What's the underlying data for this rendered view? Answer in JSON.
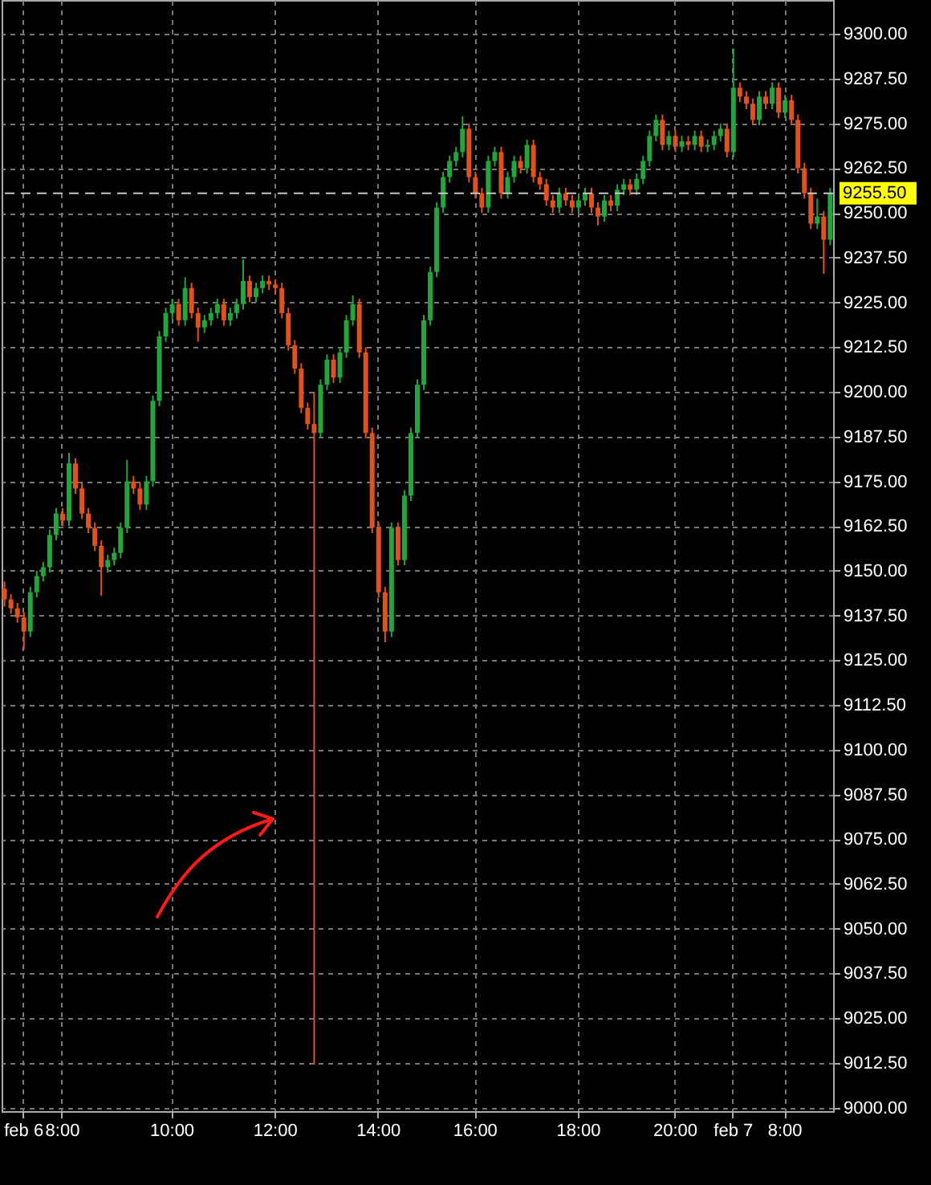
{
  "chart_data": {
    "type": "candlestick",
    "categories": [
      null,
      null,
      null,
      "feb 6",
      null,
      null,
      null,
      null,
      null,
      "8:00",
      null,
      null,
      null,
      null,
      null,
      null,
      null,
      null,
      null,
      null,
      null,
      null,
      null,
      null,
      null,
      null,
      "10:00",
      null,
      null,
      null,
      null,
      null,
      null,
      null,
      null,
      null,
      null,
      null,
      null,
      null,
      null,
      null,
      "12:00",
      null,
      null,
      null,
      null,
      null,
      null,
      null,
      null,
      null,
      null,
      null,
      null,
      null,
      null,
      null,
      "14:00",
      null,
      null,
      null,
      null,
      null,
      null,
      null,
      null,
      null,
      null,
      null,
      null,
      null,
      null,
      "16:00",
      null,
      null,
      null,
      null,
      null,
      null,
      null,
      null,
      null,
      null,
      null,
      null,
      null,
      null,
      null,
      "18:00",
      null,
      null,
      null,
      null,
      null,
      null,
      null,
      null,
      null,
      null,
      null,
      null,
      null,
      null,
      "20:00",
      null,
      null,
      null,
      null,
      null,
      null,
      null,
      null,
      "feb 7",
      null,
      null,
      null,
      null,
      null,
      null,
      null,
      "8:00",
      null,
      null,
      null,
      null,
      null,
      null,
      null
    ],
    "ohlc": [
      [
        9145,
        9147,
        9140,
        9142
      ],
      [
        9142,
        9143.5,
        9138,
        9139.5
      ],
      [
        9139.5,
        9141,
        9135.5,
        9137
      ],
      [
        9137,
        9138.5,
        9128,
        9133
      ],
      [
        9133,
        9145.5,
        9131.5,
        9144
      ],
      [
        9144,
        9150,
        9142.5,
        9148.5
      ],
      [
        9148.5,
        9152.5,
        9147,
        9151
      ],
      [
        9151,
        9161.5,
        9149.5,
        9160
      ],
      [
        9160,
        9167.5,
        9158.5,
        9166
      ],
      [
        9166,
        9167.5,
        9162.5,
        9164
      ],
      [
        9164,
        9183,
        9162.5,
        9180
      ],
      [
        9180,
        9181.5,
        9171.5,
        9173
      ],
      [
        9173,
        9174.5,
        9164.5,
        9166
      ],
      [
        9166,
        9167.5,
        9160.5,
        9162
      ],
      [
        9162,
        9163.5,
        9155.5,
        9157
      ],
      [
        9157,
        9158.5,
        9143,
        9151
      ],
      [
        9151,
        9154.5,
        9149.5,
        9153
      ],
      [
        9153,
        9156.5,
        9151.5,
        9155
      ],
      [
        9155,
        9163.5,
        9153.5,
        9162
      ],
      [
        9162,
        9181,
        9160.5,
        9175
      ],
      [
        9175,
        9176.5,
        9171.5,
        9173
      ],
      [
        9173,
        9174.5,
        9167,
        9168.5
      ],
      [
        9168.5,
        9176.5,
        9167,
        9175
      ],
      [
        9175,
        9199,
        9173.5,
        9197.5
      ],
      [
        9197.5,
        9217,
        9196,
        9215.5
      ],
      [
        9215.5,
        9223.5,
        9214,
        9222
      ],
      [
        9222,
        9226,
        9220.5,
        9224.5
      ],
      [
        9224.5,
        9226,
        9218.5,
        9220
      ],
      [
        9220,
        9232,
        9218.5,
        9229
      ],
      [
        9229,
        9230.5,
        9220.5,
        9222
      ],
      [
        9222,
        9223.5,
        9214,
        9218
      ],
      [
        9218,
        9221.5,
        9216.5,
        9220
      ],
      [
        9220,
        9223.5,
        9218.5,
        9222
      ],
      [
        9222,
        9226,
        9220.5,
        9224.5
      ],
      [
        9224.5,
        9226,
        9218.5,
        9220
      ],
      [
        9220,
        9223.5,
        9218.5,
        9222
      ],
      [
        9222,
        9226,
        9220.5,
        9224.5
      ],
      [
        9224.5,
        9237,
        9223,
        9231
      ],
      [
        9231,
        9232.5,
        9225,
        9226.5
      ],
      [
        9226.5,
        9230.5,
        9225,
        9229
      ],
      [
        9229,
        9232.5,
        9227.5,
        9231
      ],
      [
        9231,
        9232.5,
        9228.5,
        9230
      ],
      [
        9230,
        9231.5,
        9227.5,
        9229
      ],
      [
        9229,
        9230.5,
        9220.5,
        9222
      ],
      [
        9222,
        9223.5,
        9211.5,
        9213
      ],
      [
        9213,
        9214.5,
        9205,
        9206.5
      ],
      [
        9206.5,
        9208,
        9194,
        9195.5
      ],
      [
        9195.5,
        9197,
        9189.5,
        9191
      ],
      [
        9191,
        9200,
        9012,
        9188.5
      ],
      [
        9188.5,
        9203.5,
        9187,
        9202
      ],
      [
        9202,
        9210.5,
        9200.5,
        9209
      ],
      [
        9209,
        9210.5,
        9202.5,
        9204
      ],
      [
        9204,
        9212.5,
        9202.5,
        9211
      ],
      [
        9211,
        9221.5,
        9209.5,
        9220
      ],
      [
        9220,
        9227,
        9218.5,
        9224.5
      ],
      [
        9224.5,
        9226,
        9209.5,
        9211
      ],
      [
        9211,
        9212.5,
        9187,
        9188.5
      ],
      [
        9188.5,
        9190,
        9160.5,
        9162
      ],
      [
        9162,
        9163.5,
        9142.5,
        9144
      ],
      [
        9144,
        9145.5,
        9130,
        9133
      ],
      [
        9133,
        9163.5,
        9131.5,
        9162
      ],
      [
        9162,
        9163.5,
        9151.5,
        9153
      ],
      [
        9153,
        9172.5,
        9151.5,
        9171
      ],
      [
        9171,
        9190,
        9169.5,
        9188.5
      ],
      [
        9188.5,
        9203.5,
        9187,
        9202
      ],
      [
        9202,
        9221.5,
        9200.5,
        9220
      ],
      [
        9220,
        9235,
        9218.5,
        9233.5
      ],
      [
        9233.5,
        9253,
        9232,
        9251.5
      ],
      [
        9251.5,
        9261.5,
        9250,
        9260
      ],
      [
        9260,
        9266,
        9258.5,
        9264.5
      ],
      [
        9264.5,
        9268.5,
        9263,
        9267
      ],
      [
        9267,
        9277,
        9265.5,
        9273.5
      ],
      [
        9273.5,
        9275,
        9258.5,
        9260
      ],
      [
        9260,
        9261.5,
        9254,
        9255.5
      ],
      [
        9255.5,
        9257,
        9250,
        9251.5
      ],
      [
        9251.5,
        9266,
        9250,
        9264.5
      ],
      [
        9264.5,
        9268.5,
        9263,
        9267
      ],
      [
        9267,
        9268.5,
        9254,
        9255.5
      ],
      [
        9255.5,
        9261.5,
        9254,
        9260
      ],
      [
        9260,
        9266,
        9258.5,
        9264.5
      ],
      [
        9264.5,
        9266,
        9261,
        9262.5
      ],
      [
        9262.5,
        9270.5,
        9261,
        9269
      ],
      [
        9269,
        9270.5,
        9258.5,
        9260
      ],
      [
        9260,
        9261.5,
        9256.5,
        9258
      ],
      [
        9258,
        9259.5,
        9252,
        9253.5
      ],
      [
        9253.5,
        9255,
        9250,
        9251.5
      ],
      [
        9251.5,
        9257,
        9250,
        9255.5
      ],
      [
        9255.5,
        9257,
        9252,
        9253.5
      ],
      [
        9253.5,
        9255,
        9250,
        9251.5
      ],
      [
        9251.5,
        9255,
        9250,
        9253.5
      ],
      [
        9253.5,
        9257,
        9252,
        9255.5
      ],
      [
        9255.5,
        9257,
        9250,
        9251.5
      ],
      [
        9251.5,
        9253,
        9246.5,
        9249
      ],
      [
        9249,
        9255,
        9247.5,
        9253.5
      ],
      [
        9253.5,
        9255,
        9250.5,
        9252
      ],
      [
        9252,
        9258,
        9250.5,
        9256.5
      ],
      [
        9256.5,
        9259.5,
        9255,
        9258
      ],
      [
        9258,
        9259.5,
        9255,
        9256.5
      ],
      [
        9256.5,
        9261,
        9255,
        9259.5
      ],
      [
        9259.5,
        9266,
        9258,
        9264.5
      ],
      [
        9264.5,
        9273,
        9263,
        9271.5
      ],
      [
        9271.5,
        9277.5,
        9270,
        9276
      ],
      [
        9276,
        9277.5,
        9267.5,
        9269
      ],
      [
        9269,
        9273,
        9267.5,
        9271.5
      ],
      [
        9271.5,
        9273,
        9267,
        9268.5
      ],
      [
        9268.5,
        9271.5,
        9267,
        9270
      ],
      [
        9270,
        9271.5,
        9267.5,
        9269
      ],
      [
        9269,
        9273,
        9267.5,
        9271.5
      ],
      [
        9271.5,
        9273,
        9267,
        9268.5
      ],
      [
        9268.5,
        9270.5,
        9267,
        9269
      ],
      [
        9269,
        9273,
        9267.5,
        9271.5
      ],
      [
        9271.5,
        9275,
        9270,
        9273.5
      ],
      [
        9273.5,
        9275,
        9265.5,
        9267
      ],
      [
        9267,
        9296,
        9265.5,
        9285
      ],
      [
        9285,
        9286.5,
        9281,
        9282.5
      ],
      [
        9282.5,
        9284,
        9279,
        9280.5
      ],
      [
        9280.5,
        9282,
        9274.5,
        9276
      ],
      [
        9276,
        9284,
        9274.5,
        9282.5
      ],
      [
        9282.5,
        9284,
        9279,
        9280.5
      ],
      [
        9280.5,
        9286.5,
        9279,
        9285
      ],
      [
        9285,
        9286.5,
        9276.5,
        9278
      ],
      [
        9278,
        9283,
        9276.5,
        9281.5
      ],
      [
        9281.5,
        9283,
        9274.5,
        9276
      ],
      [
        9276,
        9277.5,
        9261,
        9262.5
      ],
      [
        9262.5,
        9264,
        9254,
        9255.5
      ],
      [
        9255.5,
        9257,
        9245.5,
        9247
      ],
      [
        9247,
        9254,
        9245.5,
        9249
      ],
      [
        9249,
        9250.5,
        9233,
        9242.5
      ],
      [
        9242.5,
        9257,
        9241,
        9255.5
      ]
    ],
    "colors": [
      "#e0521c",
      "#e0521c",
      "#e0521c",
      "#e0521c",
      "#22a63c",
      "#22a63c",
      "#22a63c",
      "#22a63c",
      "#22a63c",
      "#e0521c",
      "#22a63c",
      "#e0521c",
      "#e0521c",
      "#e0521c",
      "#e0521c",
      "#e0521c",
      "#22a63c",
      "#22a63c",
      "#22a63c",
      "#22a63c",
      "#e0521c",
      "#e0521c",
      "#22a63c",
      "#22a63c",
      "#22a63c",
      "#22a63c",
      "#22a63c",
      "#e0521c",
      "#22a63c",
      "#e0521c",
      "#e0521c",
      "#22a63c",
      "#22a63c",
      "#22a63c",
      "#e0521c",
      "#22a63c",
      "#22a63c",
      "#22a63c",
      "#e0521c",
      "#22a63c",
      "#22a63c",
      "#e0521c",
      "#e0521c",
      "#e0521c",
      "#e0521c",
      "#e0521c",
      "#e0521c",
      "#e0521c",
      "#e0521c",
      "#22a63c",
      "#22a63c",
      "#e0521c",
      "#22a63c",
      "#22a63c",
      "#22a63c",
      "#e0521c",
      "#e0521c",
      "#e0521c",
      "#e0521c",
      "#e0521c",
      "#22a63c",
      "#e0521c",
      "#22a63c",
      "#22a63c",
      "#22a63c",
      "#22a63c",
      "#22a63c",
      "#22a63c",
      "#22a63c",
      "#22a63c",
      "#22a63c",
      "#22a63c",
      "#e0521c",
      "#e0521c",
      "#e0521c",
      "#22a63c",
      "#22a63c",
      "#e0521c",
      "#22a63c",
      "#22a63c",
      "#e0521c",
      "#22a63c",
      "#e0521c",
      "#e0521c",
      "#e0521c",
      "#e0521c",
      "#22a63c",
      "#e0521c",
      "#e0521c",
      "#22a63c",
      "#22a63c",
      "#e0521c",
      "#e0521c",
      "#22a63c",
      "#e0521c",
      "#22a63c",
      "#22a63c",
      "#e0521c",
      "#22a63c",
      "#22a63c",
      "#22a63c",
      "#22a63c",
      "#e0521c",
      "#22a63c",
      "#e0521c",
      "#22a63c",
      "#e0521c",
      "#22a63c",
      "#e0521c",
      "#22a63c",
      "#22a63c",
      "#22a63c",
      "#e0521c",
      "#22a63c",
      "#e0521c",
      "#e0521c",
      "#e0521c",
      "#22a63c",
      "#e0521c",
      "#22a63c",
      "#e0521c",
      "#22a63c",
      "#e0521c",
      "#e0521c",
      "#e0521c",
      "#e0521c",
      "#22a63c",
      "#e0521c",
      "#22a63c"
    ],
    "ylim": [
      8999,
      9309.5
    ],
    "yticks": [
      {
        "value": 9000,
        "label": "9000.00"
      },
      {
        "value": 9012.5,
        "label": "9012.50"
      },
      {
        "value": 9025,
        "label": "9025.00"
      },
      {
        "value": 9037.5,
        "label": "9037.50"
      },
      {
        "value": 9050,
        "label": "9050.00"
      },
      {
        "value": 9062.5,
        "label": "9062.50"
      },
      {
        "value": 9075,
        "label": "9075.00"
      },
      {
        "value": 9087.5,
        "label": "9087.50"
      },
      {
        "value": 9100,
        "label": "9100.00"
      },
      {
        "value": 9112.5,
        "label": "9112.50"
      },
      {
        "value": 9125,
        "label": "9125.00"
      },
      {
        "value": 9137.5,
        "label": "9137.50"
      },
      {
        "value": 9150,
        "label": "9150.00"
      },
      {
        "value": 9162.5,
        "label": "9162.50"
      },
      {
        "value": 9175,
        "label": "9175.00"
      },
      {
        "value": 9187.5,
        "label": "9187.50"
      },
      {
        "value": 9200,
        "label": "9200.00"
      },
      {
        "value": 9212.5,
        "label": "9212.50"
      },
      {
        "value": 9225,
        "label": "9225.00"
      },
      {
        "value": 9237.5,
        "label": "9237.50"
      },
      {
        "value": 9250,
        "label": "9250.00"
      },
      {
        "value": 9262.5,
        "label": "9262.50"
      },
      {
        "value": 9275,
        "label": "9275.00"
      },
      {
        "value": 9287.5,
        "label": "9287.50"
      },
      {
        "value": 9300,
        "label": "9300.00"
      }
    ],
    "ref_lines": [
      {
        "axis": "y",
        "value": 9255.5,
        "label": "9255.50",
        "color": "#c8c8c8",
        "line_style": "dashed"
      }
    ],
    "grid": true
  }
}
